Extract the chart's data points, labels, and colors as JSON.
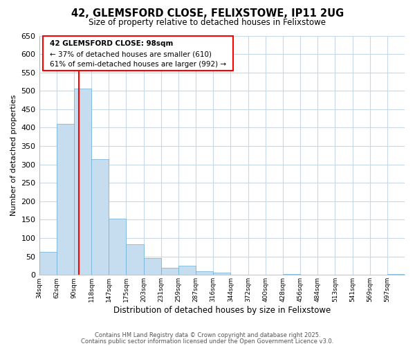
{
  "title": "42, GLEMSFORD CLOSE, FELIXSTOWE, IP11 2UG",
  "subtitle": "Size of property relative to detached houses in Felixstowe",
  "xlabel": "Distribution of detached houses by size in Felixstowe",
  "ylabel": "Number of detached properties",
  "bar_color": "#c6ddf0",
  "bar_edge_color": "#6aaed6",
  "annotation_title": "42 GLEMSFORD CLOSE: 98sqm",
  "annotation_line1": "← 37% of detached houses are smaller (610)",
  "annotation_line2": "61% of semi-detached houses are larger (992) →",
  "categories": [
    "34sqm",
    "62sqm",
    "90sqm",
    "118sqm",
    "147sqm",
    "175sqm",
    "203sqm",
    "231sqm",
    "259sqm",
    "287sqm",
    "316sqm",
    "344sqm",
    "372sqm",
    "400sqm",
    "428sqm",
    "456sqm",
    "484sqm",
    "513sqm",
    "541sqm",
    "569sqm",
    "597sqm"
  ],
  "bin_edges": [
    34,
    62,
    90,
    118,
    147,
    175,
    203,
    231,
    259,
    287,
    316,
    344,
    372,
    400,
    428,
    456,
    484,
    513,
    541,
    569,
    597,
    625
  ],
  "values": [
    63,
    410,
    507,
    315,
    153,
    84,
    46,
    20,
    25,
    10,
    6,
    0,
    0,
    0,
    3,
    0,
    0,
    0,
    0,
    0,
    3
  ],
  "ylim": [
    0,
    650
  ],
  "yticks": [
    0,
    50,
    100,
    150,
    200,
    250,
    300,
    350,
    400,
    450,
    500,
    550,
    600,
    650
  ],
  "red_line_x": 98,
  "background_color": "#ffffff",
  "grid_color": "#c8d8e8",
  "footnote1": "Contains HM Land Registry data © Crown copyright and database right 2025.",
  "footnote2": "Contains public sector information licensed under the Open Government Licence v3.0."
}
